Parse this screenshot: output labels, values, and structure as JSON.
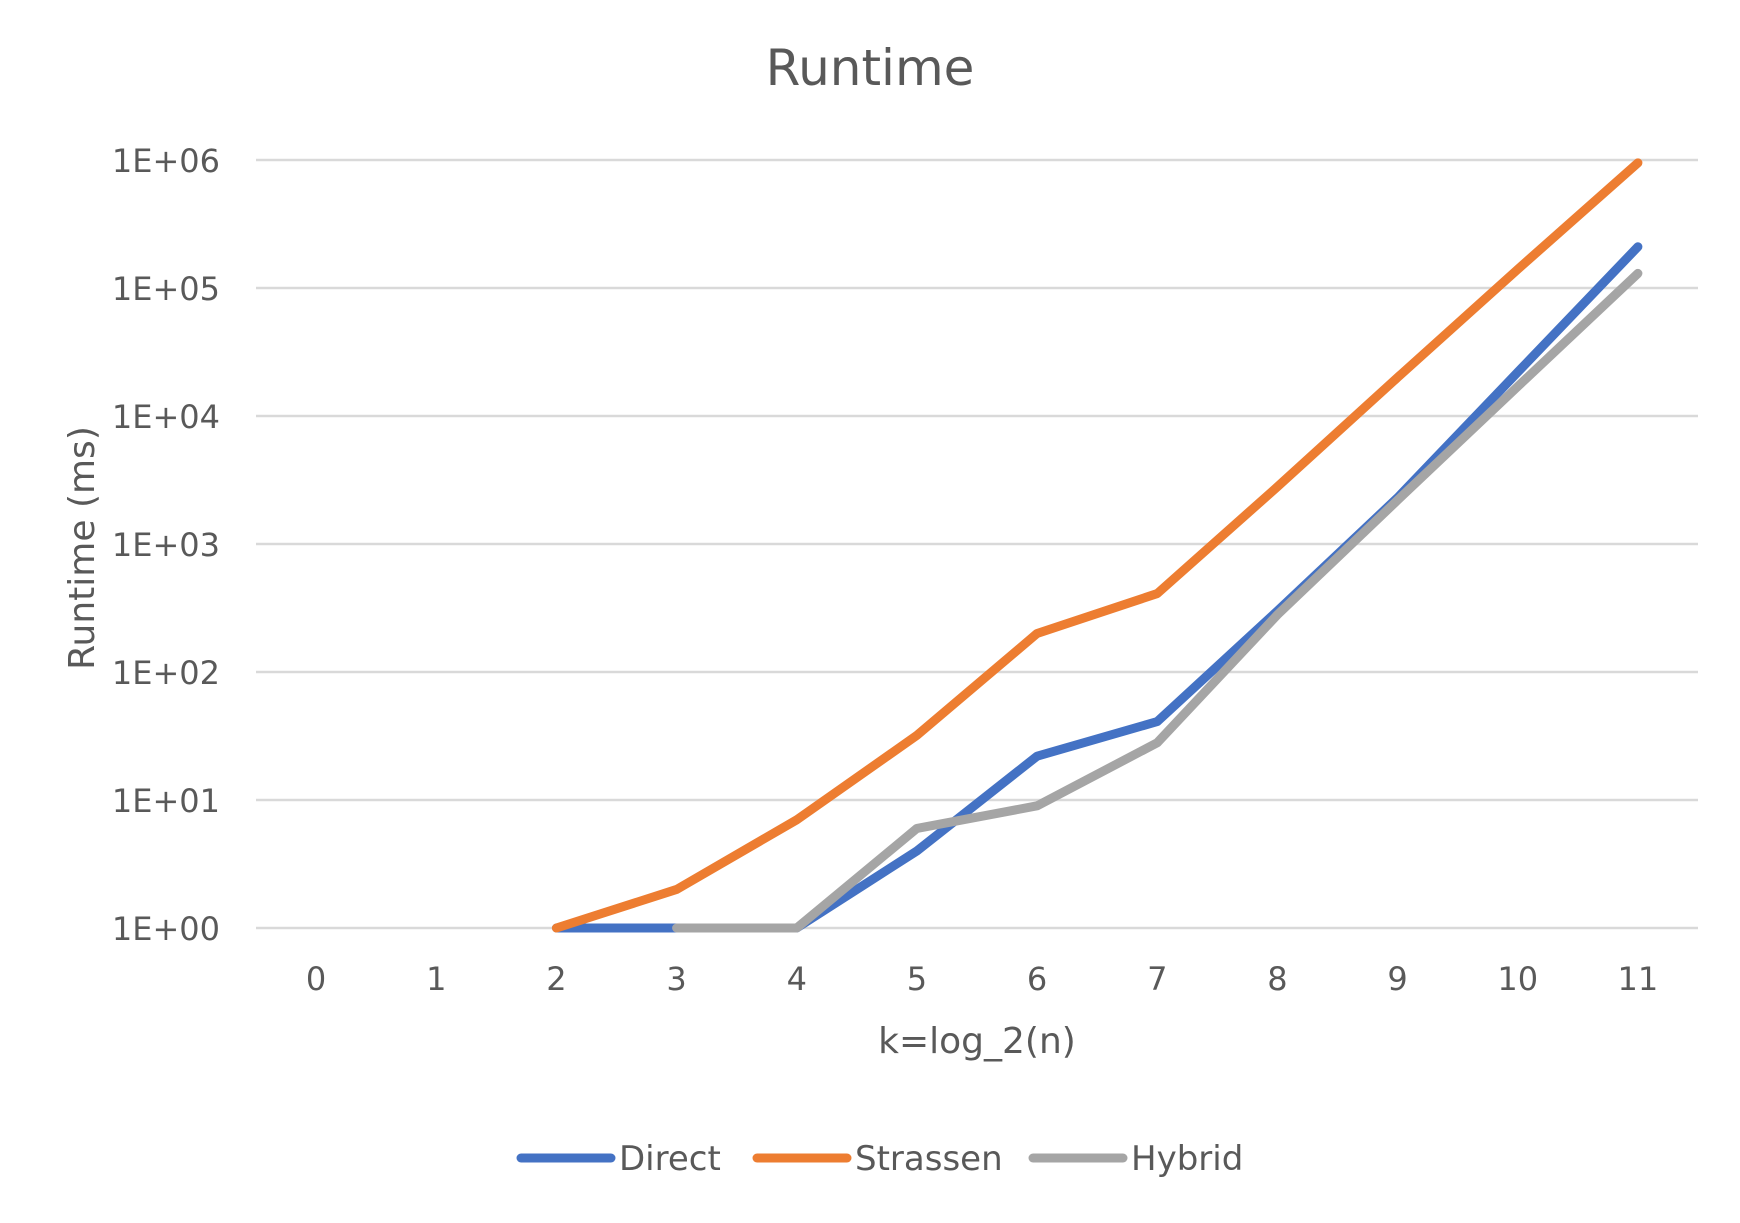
{
  "chart_data": {
    "type": "line",
    "title": "Runtime",
    "xlabel": "k=log_2(n)",
    "ylabel": "Runtime (ms)",
    "y_scale": "log",
    "ylim": [
      1,
      1000000
    ],
    "y_ticks": [
      1,
      10,
      100,
      1000,
      10000,
      100000,
      1000000
    ],
    "y_tick_labels": [
      "1E+00",
      "1E+01",
      "1E+02",
      "1E+03",
      "1E+04",
      "1E+05",
      "1E+06"
    ],
    "categories": [
      "0",
      "1",
      "2",
      "3",
      "4",
      "5",
      "6",
      "7",
      "8",
      "9",
      "10",
      "11"
    ],
    "grid": "horizontal",
    "legend_position": "bottom",
    "series": [
      {
        "name": "Direct",
        "color": "#4472C4",
        "values": [
          null,
          null,
          1,
          1,
          1,
          4,
          22,
          41,
          300,
          2300,
          22000,
          210000
        ]
      },
      {
        "name": "Strassen",
        "color": "#ED7D31",
        "values": [
          null,
          null,
          1,
          2,
          7,
          32,
          200,
          410,
          2800,
          20000,
          140000,
          950000
        ]
      },
      {
        "name": "Hybrid",
        "color": "#A5A5A5",
        "values": [
          null,
          null,
          null,
          1,
          1,
          6,
          9,
          28,
          280,
          2200,
          17000,
          130000
        ]
      }
    ]
  }
}
